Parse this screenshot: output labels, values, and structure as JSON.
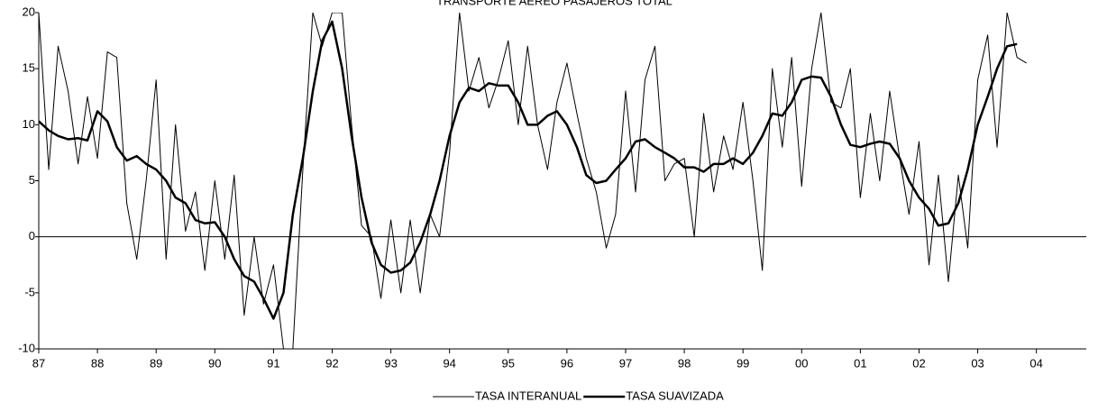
{
  "chart_data": {
    "type": "line",
    "title": "TRANSPORTE AÉREO PASAJEROS TOTAL",
    "x": [
      1987,
      1987.17,
      1987.33,
      1987.5,
      1987.67,
      1987.83,
      1988,
      1988.17,
      1988.33,
      1988.5,
      1988.67,
      1988.83,
      1989,
      1989.17,
      1989.33,
      1989.5,
      1989.67,
      1989.83,
      1990,
      1990.17,
      1990.33,
      1990.5,
      1990.67,
      1990.83,
      1991,
      1991.17,
      1991.33,
      1991.5,
      1991.67,
      1991.83,
      1992,
      1992.17,
      1992.33,
      1992.5,
      1992.67,
      1992.83,
      1993,
      1993.17,
      1993.33,
      1993.5,
      1993.67,
      1993.83,
      1994,
      1994.17,
      1994.33,
      1994.5,
      1994.67,
      1994.83,
      1995,
      1995.17,
      1995.33,
      1995.5,
      1995.67,
      1995.83,
      1996,
      1996.17,
      1996.33,
      1996.5,
      1996.67,
      1996.83,
      1997,
      1997.17,
      1997.33,
      1997.5,
      1997.67,
      1997.83,
      1998,
      1998.17,
      1998.33,
      1998.5,
      1998.67,
      1998.83,
      1999,
      1999.17,
      1999.33,
      1999.5,
      1999.67,
      1999.83,
      2000,
      2000.17,
      2000.33,
      2000.5,
      2000.67,
      2000.83,
      2001,
      2001.17,
      2001.33,
      2001.5,
      2001.67,
      2001.83,
      2002,
      2002.17,
      2002.33,
      2002.5,
      2002.67,
      2002.83,
      2003,
      2003.17,
      2003.33,
      2003.5,
      2003.67,
      2003.83
    ],
    "series": [
      {
        "name": "TASA INTERANUAL",
        "color": "#000000",
        "width": 1,
        "values": [
          20,
          6,
          17,
          13,
          6.5,
          12.5,
          7,
          16.5,
          16,
          3,
          -2,
          5,
          14,
          -2,
          10,
          0.5,
          4,
          -3,
          5,
          -2,
          5.5,
          -7,
          0,
          -6,
          -2.5,
          -10,
          -10,
          6,
          20,
          17,
          20,
          20,
          10,
          1,
          0,
          -5.5,
          1.5,
          -5,
          1.5,
          -5,
          2,
          0,
          7.5,
          20,
          13,
          16,
          11.5,
          14,
          17.5,
          10,
          17,
          10,
          6,
          12,
          15.5,
          11,
          7,
          4,
          -1,
          2,
          13,
          4,
          14,
          17,
          5,
          6.5,
          7,
          0,
          11,
          4,
          9,
          6,
          12,
          5,
          -3,
          15,
          8,
          16,
          4.5,
          15,
          20,
          12,
          11.5,
          15,
          3.5,
          11,
          5,
          13,
          7,
          2,
          8.5,
          -2.5,
          5.5,
          -4,
          5.5,
          -1,
          14,
          18,
          8,
          20,
          16,
          15.5
        ]
      },
      {
        "name": "TASA SUAVIZADA",
        "color": "#000000",
        "width": 2.5,
        "values": [
          10.3,
          9.5,
          9,
          8.7,
          8.8,
          8.6,
          11.2,
          10.3,
          8,
          6.8,
          7.2,
          6.5,
          6,
          5,
          3.5,
          3,
          1.5,
          1.2,
          1.3,
          0,
          -2,
          -3.5,
          -4,
          -5.5,
          -7.3,
          -5,
          2,
          7,
          13,
          17.5,
          19.2,
          15,
          9,
          3.5,
          -0.5,
          -2.5,
          -3.2,
          -3,
          -2.3,
          -0.5,
          2,
          5,
          9,
          12,
          13.3,
          13,
          13.7,
          13.5,
          13.5,
          12,
          10,
          10,
          10.8,
          11.2,
          10,
          8,
          5.5,
          4.8,
          5,
          6,
          7,
          8.5,
          8.7,
          8,
          7.5,
          7,
          6.2,
          6.2,
          5.8,
          6.5,
          6.5,
          7,
          6.5,
          7.5,
          9,
          11,
          10.8,
          12,
          14,
          14.3,
          14.2,
          12.5,
          10,
          8.2,
          8,
          8.3,
          8.5,
          8.3,
          7,
          5,
          3.5,
          2.5,
          1,
          1.2,
          3,
          6,
          10,
          12.5,
          15,
          17,
          17.2,
          null
        ]
      }
    ],
    "xlim": [
      1987,
      2004.85
    ],
    "xticks": [
      {
        "value": 1987,
        "label": "87"
      },
      {
        "value": 1988,
        "label": "88"
      },
      {
        "value": 1989,
        "label": "89"
      },
      {
        "value": 1990,
        "label": "90"
      },
      {
        "value": 1991,
        "label": "91"
      },
      {
        "value": 1992,
        "label": "92"
      },
      {
        "value": 1993,
        "label": "93"
      },
      {
        "value": 1994,
        "label": "94"
      },
      {
        "value": 1995,
        "label": "95"
      },
      {
        "value": 1996,
        "label": "96"
      },
      {
        "value": 1997,
        "label": "97"
      },
      {
        "value": 1998,
        "label": "98"
      },
      {
        "value": 1999,
        "label": "99"
      },
      {
        "value": 2000,
        "label": "00"
      },
      {
        "value": 2001,
        "label": "01"
      },
      {
        "value": 2002,
        "label": "02"
      },
      {
        "value": 2003,
        "label": "03"
      },
      {
        "value": 2004,
        "label": "04"
      }
    ],
    "ylim": [
      -10,
      20
    ],
    "yticks": [
      -10,
      -5,
      0,
      5,
      10,
      15,
      20
    ],
    "legend": "bottom"
  }
}
